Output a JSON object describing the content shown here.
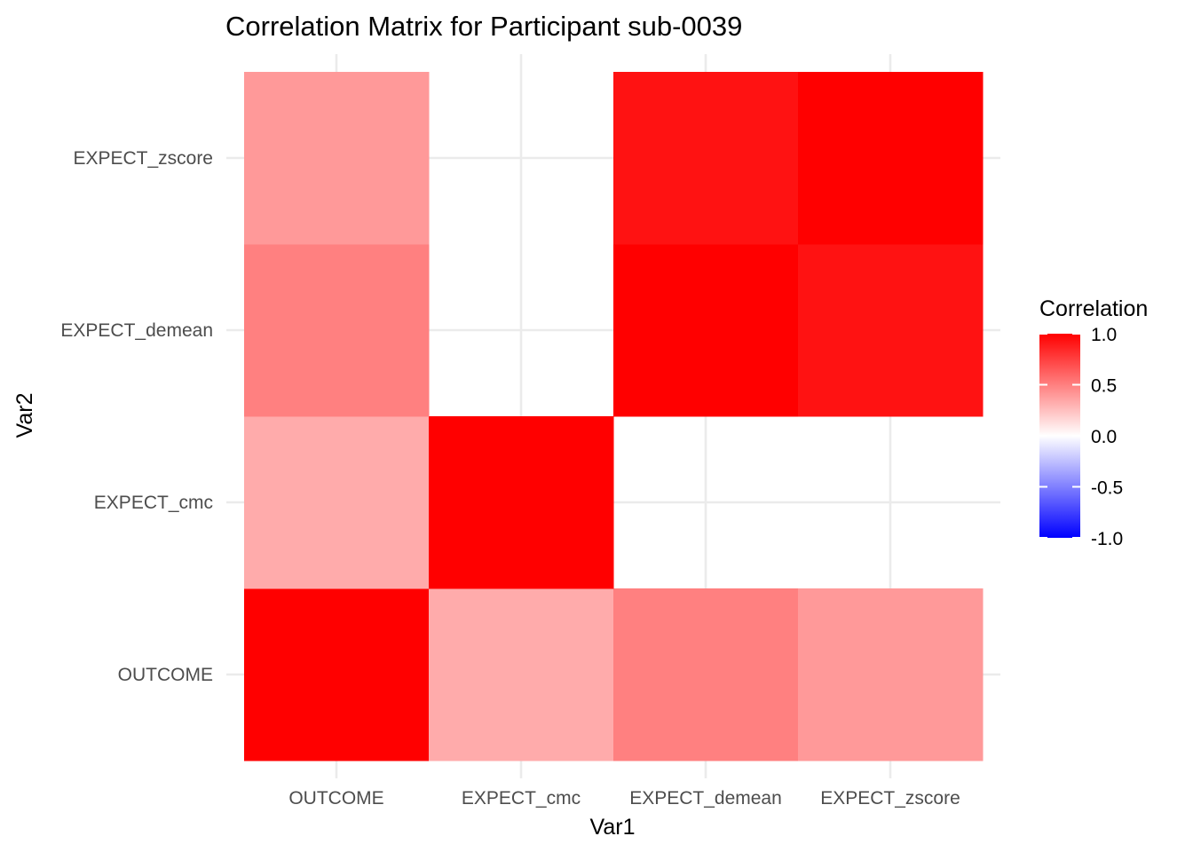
{
  "chart_data": {
    "type": "heatmap",
    "title": "Correlation Matrix for Participant sub-0039",
    "xlabel": "Var1",
    "ylabel": "Var2",
    "x_categories": [
      "OUTCOME",
      "EXPECT_cmc",
      "EXPECT_demean",
      "EXPECT_zscore"
    ],
    "y_categories": [
      "OUTCOME",
      "EXPECT_cmc",
      "EXPECT_demean",
      "EXPECT_zscore"
    ],
    "cells": [
      {
        "x": "OUTCOME",
        "y": "OUTCOME",
        "value": 1.0
      },
      {
        "x": "EXPECT_cmc",
        "y": "OUTCOME",
        "value": 0.33
      },
      {
        "x": "EXPECT_demean",
        "y": "OUTCOME",
        "value": 0.5
      },
      {
        "x": "EXPECT_zscore",
        "y": "OUTCOME",
        "value": 0.4
      },
      {
        "x": "OUTCOME",
        "y": "EXPECT_cmc",
        "value": 0.33
      },
      {
        "x": "EXPECT_cmc",
        "y": "EXPECT_cmc",
        "value": 1.0
      },
      {
        "x": "OUTCOME",
        "y": "EXPECT_demean",
        "value": 0.5
      },
      {
        "x": "EXPECT_demean",
        "y": "EXPECT_demean",
        "value": 1.0
      },
      {
        "x": "EXPECT_zscore",
        "y": "EXPECT_demean",
        "value": 0.93
      },
      {
        "x": "OUTCOME",
        "y": "EXPECT_zscore",
        "value": 0.4
      },
      {
        "x": "EXPECT_demean",
        "y": "EXPECT_zscore",
        "value": 0.93
      },
      {
        "x": "EXPECT_zscore",
        "y": "EXPECT_zscore",
        "value": 1.0
      }
    ],
    "color_scale": {
      "low": "#0000FF",
      "mid": "#FFFFFF",
      "high": "#FF0000",
      "limits": [
        -1,
        1
      ]
    },
    "legend": {
      "title": "Correlation",
      "ticks": [
        "1.0",
        "0.5",
        "0.0",
        "-0.5",
        "-1.0"
      ],
      "position": "right"
    },
    "grid": true
  }
}
